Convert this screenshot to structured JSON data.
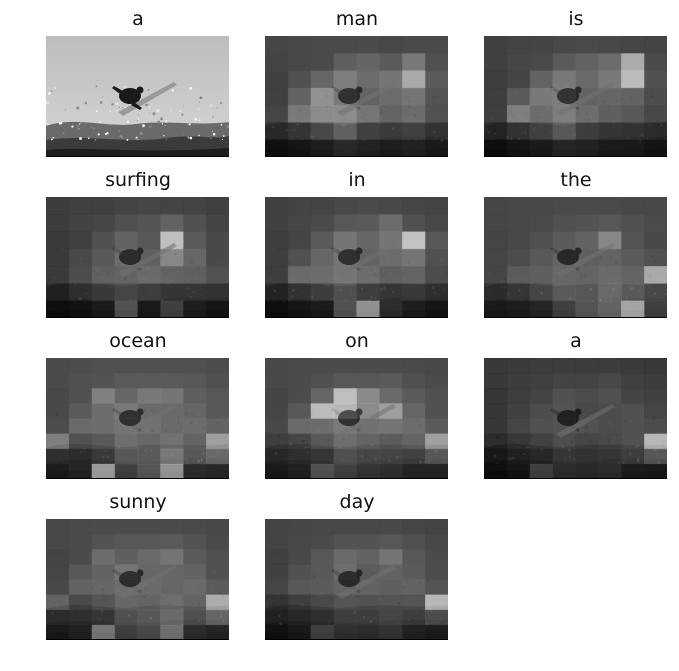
{
  "figure": {
    "panels": [
      {
        "word": "a",
        "attention": []
      },
      {
        "word": "man",
        "attention": [
          [
            0.25,
            0.26,
            0.27,
            0.27,
            0.28,
            0.26,
            0.27,
            0.27
          ],
          [
            0.24,
            0.26,
            0.27,
            0.38,
            0.42,
            0.36,
            0.52,
            0.3
          ],
          [
            0.22,
            0.3,
            0.42,
            0.55,
            0.45,
            0.5,
            0.78,
            0.36
          ],
          [
            0.22,
            0.4,
            0.65,
            0.52,
            0.4,
            0.45,
            0.5,
            0.32
          ],
          [
            0.24,
            0.52,
            0.62,
            0.62,
            0.5,
            0.4,
            0.45,
            0.3
          ],
          [
            0.15,
            0.22,
            0.32,
            0.45,
            0.28,
            0.25,
            0.28,
            0.2
          ],
          [
            0.05,
            0.08,
            0.12,
            0.18,
            0.15,
            0.12,
            0.14,
            0.1
          ]
        ]
      },
      {
        "word": "is",
        "attention": [
          [
            0.22,
            0.24,
            0.24,
            0.26,
            0.27,
            0.26,
            0.25,
            0.24
          ],
          [
            0.22,
            0.25,
            0.27,
            0.36,
            0.4,
            0.46,
            0.8,
            0.28
          ],
          [
            0.2,
            0.24,
            0.4,
            0.52,
            0.44,
            0.52,
            0.88,
            0.3
          ],
          [
            0.2,
            0.36,
            0.52,
            0.54,
            0.4,
            0.42,
            0.4,
            0.28
          ],
          [
            0.2,
            0.55,
            0.45,
            0.55,
            0.45,
            0.38,
            0.34,
            0.25
          ],
          [
            0.12,
            0.2,
            0.28,
            0.4,
            0.26,
            0.22,
            0.2,
            0.16
          ],
          [
            0.04,
            0.08,
            0.1,
            0.16,
            0.14,
            0.1,
            0.1,
            0.08
          ]
        ]
      },
      {
        "word": "surfing",
        "attention": [
          [
            0.2,
            0.22,
            0.22,
            0.24,
            0.25,
            0.24,
            0.24,
            0.22
          ],
          [
            0.2,
            0.23,
            0.25,
            0.3,
            0.33,
            0.4,
            0.3,
            0.24
          ],
          [
            0.18,
            0.22,
            0.3,
            0.4,
            0.34,
            0.9,
            0.36,
            0.26
          ],
          [
            0.18,
            0.26,
            0.35,
            0.46,
            0.38,
            0.6,
            0.42,
            0.26
          ],
          [
            0.18,
            0.28,
            0.38,
            0.4,
            0.44,
            0.4,
            0.38,
            0.3
          ],
          [
            0.1,
            0.18,
            0.24,
            0.3,
            0.26,
            0.22,
            0.22,
            0.2
          ],
          [
            0.04,
            0.06,
            0.1,
            0.4,
            0.1,
            0.3,
            0.12,
            0.08
          ]
        ]
      },
      {
        "word": "in",
        "attention": [
          [
            0.22,
            0.24,
            0.24,
            0.26,
            0.27,
            0.26,
            0.25,
            0.24
          ],
          [
            0.22,
            0.25,
            0.27,
            0.34,
            0.36,
            0.46,
            0.3,
            0.26
          ],
          [
            0.2,
            0.24,
            0.36,
            0.5,
            0.42,
            0.5,
            0.92,
            0.34
          ],
          [
            0.2,
            0.3,
            0.42,
            0.5,
            0.4,
            0.45,
            0.5,
            0.3
          ],
          [
            0.2,
            0.44,
            0.45,
            0.5,
            0.45,
            0.38,
            0.4,
            0.28
          ],
          [
            0.12,
            0.2,
            0.26,
            0.36,
            0.26,
            0.22,
            0.24,
            0.18
          ],
          [
            0.04,
            0.08,
            0.1,
            0.4,
            0.75,
            0.2,
            0.12,
            0.08
          ]
        ]
      },
      {
        "word": "the",
        "attention": [
          [
            0.25,
            0.26,
            0.26,
            0.27,
            0.27,
            0.27,
            0.26,
            0.26
          ],
          [
            0.25,
            0.26,
            0.27,
            0.3,
            0.32,
            0.34,
            0.3,
            0.28
          ],
          [
            0.24,
            0.26,
            0.3,
            0.36,
            0.4,
            0.6,
            0.32,
            0.26
          ],
          [
            0.24,
            0.28,
            0.34,
            0.4,
            0.38,
            0.4,
            0.36,
            0.3
          ],
          [
            0.24,
            0.36,
            0.38,
            0.42,
            0.4,
            0.44,
            0.4,
            0.78
          ],
          [
            0.16,
            0.22,
            0.3,
            0.42,
            0.4,
            0.5,
            0.42,
            0.32
          ],
          [
            0.1,
            0.12,
            0.16,
            0.3,
            0.42,
            0.5,
            0.85,
            0.3
          ]
        ]
      },
      {
        "word": "ocean",
        "attention": [
          [
            0.28,
            0.29,
            0.3,
            0.3,
            0.3,
            0.3,
            0.3,
            0.29
          ],
          [
            0.28,
            0.3,
            0.32,
            0.36,
            0.36,
            0.36,
            0.34,
            0.3
          ],
          [
            0.26,
            0.3,
            0.56,
            0.42,
            0.52,
            0.5,
            0.38,
            0.34
          ],
          [
            0.26,
            0.36,
            0.46,
            0.52,
            0.44,
            0.44,
            0.42,
            0.34
          ],
          [
            0.28,
            0.44,
            0.46,
            0.5,
            0.48,
            0.44,
            0.46,
            0.4
          ],
          [
            0.55,
            0.3,
            0.34,
            0.46,
            0.42,
            0.48,
            0.4,
            0.72
          ],
          [
            0.18,
            0.16,
            0.24,
            0.4,
            0.42,
            0.58,
            0.4,
            0.5
          ],
          [
            0.12,
            0.16,
            0.8,
            0.3,
            0.42,
            0.76,
            0.2,
            0.18
          ]
        ]
      },
      {
        "word": "on",
        "attention": [
          [
            0.26,
            0.27,
            0.28,
            0.28,
            0.28,
            0.28,
            0.27,
            0.26
          ],
          [
            0.26,
            0.28,
            0.3,
            0.34,
            0.34,
            0.36,
            0.3,
            0.28
          ],
          [
            0.24,
            0.28,
            0.42,
            0.9,
            0.62,
            0.44,
            0.36,
            0.3
          ],
          [
            0.24,
            0.34,
            0.88,
            0.86,
            0.62,
            0.72,
            0.42,
            0.3
          ],
          [
            0.26,
            0.44,
            0.46,
            0.52,
            0.48,
            0.5,
            0.46,
            0.36
          ],
          [
            0.2,
            0.24,
            0.34,
            0.46,
            0.4,
            0.36,
            0.4,
            0.72
          ],
          [
            0.14,
            0.18,
            0.22,
            0.36,
            0.3,
            0.3,
            0.28,
            0.4
          ],
          [
            0.1,
            0.14,
            0.4,
            0.3,
            0.24,
            0.22,
            0.16,
            0.16
          ]
        ]
      },
      {
        "word": "a",
        "attention": [
          [
            0.18,
            0.19,
            0.2,
            0.2,
            0.2,
            0.2,
            0.19,
            0.18
          ],
          [
            0.18,
            0.2,
            0.22,
            0.24,
            0.24,
            0.26,
            0.22,
            0.2
          ],
          [
            0.16,
            0.2,
            0.24,
            0.3,
            0.28,
            0.3,
            0.24,
            0.22
          ],
          [
            0.16,
            0.22,
            0.28,
            0.32,
            0.26,
            0.28,
            0.3,
            0.24
          ],
          [
            0.16,
            0.24,
            0.3,
            0.32,
            0.3,
            0.28,
            0.3,
            0.28
          ],
          [
            0.1,
            0.16,
            0.22,
            0.28,
            0.24,
            0.26,
            0.3,
            0.86
          ],
          [
            0.06,
            0.1,
            0.14,
            0.22,
            0.2,
            0.22,
            0.26,
            0.4
          ],
          [
            0.04,
            0.08,
            0.3,
            0.2,
            0.18,
            0.2,
            0.12,
            0.1
          ]
        ]
      },
      {
        "word": "sunny",
        "attention": [
          [
            0.26,
            0.27,
            0.28,
            0.28,
            0.28,
            0.28,
            0.27,
            0.26
          ],
          [
            0.26,
            0.28,
            0.32,
            0.34,
            0.34,
            0.36,
            0.32,
            0.28
          ],
          [
            0.24,
            0.28,
            0.46,
            0.38,
            0.44,
            0.5,
            0.36,
            0.3
          ],
          [
            0.24,
            0.34,
            0.4,
            0.5,
            0.42,
            0.42,
            0.4,
            0.3
          ],
          [
            0.26,
            0.4,
            0.42,
            0.46,
            0.44,
            0.42,
            0.44,
            0.36
          ],
          [
            0.4,
            0.26,
            0.32,
            0.42,
            0.4,
            0.46,
            0.4,
            0.8
          ],
          [
            0.16,
            0.18,
            0.22,
            0.36,
            0.4,
            0.5,
            0.36,
            0.48
          ],
          [
            0.1,
            0.14,
            0.6,
            0.3,
            0.36,
            0.56,
            0.2,
            0.16
          ]
        ]
      },
      {
        "word": "day",
        "attention": [
          [
            0.24,
            0.25,
            0.26,
            0.26,
            0.26,
            0.26,
            0.25,
            0.24
          ],
          [
            0.24,
            0.26,
            0.28,
            0.32,
            0.32,
            0.34,
            0.3,
            0.26
          ],
          [
            0.22,
            0.26,
            0.34,
            0.44,
            0.4,
            0.5,
            0.34,
            0.28
          ],
          [
            0.22,
            0.3,
            0.34,
            0.46,
            0.36,
            0.4,
            0.36,
            0.28
          ],
          [
            0.24,
            0.34,
            0.36,
            0.4,
            0.4,
            0.38,
            0.4,
            0.32
          ],
          [
            0.14,
            0.2,
            0.26,
            0.32,
            0.3,
            0.32,
            0.32,
            0.86
          ],
          [
            0.1,
            0.14,
            0.18,
            0.26,
            0.26,
            0.3,
            0.26,
            0.34
          ],
          [
            0.06,
            0.1,
            0.3,
            0.22,
            0.2,
            0.24,
            0.14,
            0.12
          ]
        ]
      }
    ]
  }
}
